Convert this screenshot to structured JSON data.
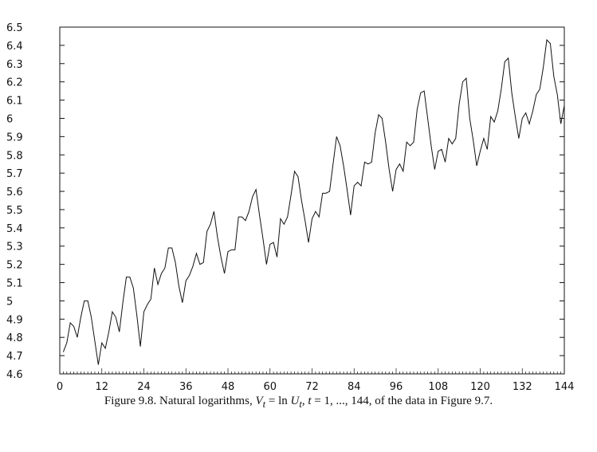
{
  "chart_data": {
    "type": "line",
    "title": "",
    "xlabel": "",
    "ylabel": "",
    "xlim": [
      0,
      144
    ],
    "ylim": [
      4.6,
      6.5
    ],
    "x_ticks": [
      "0",
      "12",
      "24",
      "36",
      "48",
      "60",
      "72",
      "84",
      "96",
      "108",
      "120",
      "132",
      "144"
    ],
    "y_ticks": [
      "4.6",
      "4.7",
      "4.8",
      "4.9",
      "5",
      "5.1",
      "5.2",
      "5.3",
      "5.4",
      "5.5",
      "5.6",
      "5.7",
      "5.8",
      "5.9",
      "6",
      "6.1",
      "6.2",
      "6.3",
      "6.4",
      "6.5"
    ],
    "grid": false,
    "series": [
      {
        "x": [
          1,
          2,
          3,
          4,
          5,
          6,
          7,
          8,
          9,
          10,
          11,
          12,
          13,
          14,
          15,
          16,
          17,
          18,
          19,
          20,
          21,
          22,
          23,
          24,
          25,
          26,
          27,
          28,
          29,
          30,
          31,
          32,
          33,
          34,
          35,
          36,
          37,
          38,
          39,
          40,
          41,
          42,
          43,
          44,
          45,
          46,
          47,
          48,
          49,
          50,
          51,
          52,
          53,
          54,
          55,
          56,
          57,
          58,
          59,
          60,
          61,
          62,
          63,
          64,
          65,
          66,
          67,
          68,
          69,
          70,
          71,
          72,
          73,
          74,
          75,
          76,
          77,
          78,
          79,
          80,
          81,
          82,
          83,
          84,
          85,
          86,
          87,
          88,
          89,
          90,
          91,
          92,
          93,
          94,
          95,
          96,
          97,
          98,
          99,
          100,
          101,
          102,
          103,
          104,
          105,
          106,
          107,
          108,
          109,
          110,
          111,
          112,
          113,
          114,
          115,
          116,
          117,
          118,
          119,
          120,
          121,
          122,
          123,
          124,
          125,
          126,
          127,
          128,
          129,
          130,
          131,
          132,
          133,
          134,
          135,
          136,
          137,
          138,
          139,
          140,
          141,
          142,
          143,
          144
        ],
        "values": [
          4.72,
          4.77,
          4.88,
          4.86,
          4.8,
          4.91,
          5.0,
          5.0,
          4.91,
          4.78,
          4.65,
          4.77,
          4.74,
          4.83,
          4.94,
          4.91,
          4.83,
          4.99,
          5.13,
          5.13,
          5.07,
          4.92,
          4.75,
          4.94,
          4.98,
          5.01,
          5.18,
          5.09,
          5.15,
          5.18,
          5.29,
          5.29,
          5.21,
          5.08,
          4.99,
          5.11,
          5.14,
          5.19,
          5.26,
          5.2,
          5.21,
          5.38,
          5.42,
          5.49,
          5.35,
          5.24,
          5.15,
          5.27,
          5.28,
          5.28,
          5.46,
          5.46,
          5.44,
          5.49,
          5.57,
          5.61,
          5.47,
          5.34,
          5.2,
          5.31,
          5.32,
          5.24,
          5.45,
          5.42,
          5.46,
          5.58,
          5.71,
          5.68,
          5.55,
          5.44,
          5.32,
          5.45,
          5.49,
          5.46,
          5.59,
          5.59,
          5.6,
          5.75,
          5.9,
          5.85,
          5.74,
          5.61,
          5.47,
          5.63,
          5.65,
          5.63,
          5.76,
          5.75,
          5.76,
          5.92,
          6.02,
          6.0,
          5.87,
          5.72,
          5.6,
          5.72,
          5.75,
          5.71,
          5.87,
          5.85,
          5.87,
          6.05,
          6.14,
          6.15,
          6.0,
          5.85,
          5.72,
          5.82,
          5.83,
          5.76,
          5.89,
          5.86,
          5.89,
          6.08,
          6.2,
          6.22,
          6.0,
          5.88,
          5.74,
          5.82,
          5.89,
          5.83,
          6.01,
          5.98,
          6.04,
          6.16,
          6.31,
          6.33,
          6.14,
          6.01,
          5.89,
          6.0,
          6.03,
          5.97,
          6.04,
          6.13,
          6.16,
          6.28,
          6.43,
          6.41,
          6.23,
          6.13,
          5.97,
          6.07
        ]
      }
    ]
  },
  "caption": {
    "prefix": "Figure 9.8.  Natural logarithms, ",
    "math": "V",
    "math_sub": "t",
    "mid1": " = ln ",
    "math2": "U",
    "math2_sub": "t",
    "mid2": ", ",
    "math3": "t",
    "suffix": " = 1, ..., 144, of the data in Figure 9.7."
  }
}
